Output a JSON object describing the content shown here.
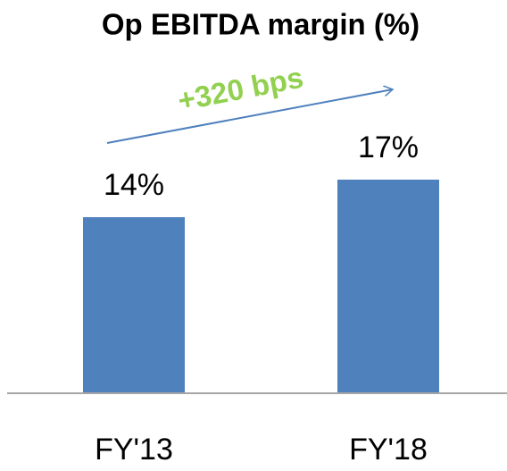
{
  "chart_data": {
    "type": "bar",
    "title": "Op EBITDA margin (%)",
    "categories": [
      "FY'13",
      "FY'18"
    ],
    "values": [
      14,
      17
    ],
    "value_labels": [
      "14%",
      "17%"
    ],
    "color": "#4f81bd",
    "annotation": "+320 bps"
  }
}
